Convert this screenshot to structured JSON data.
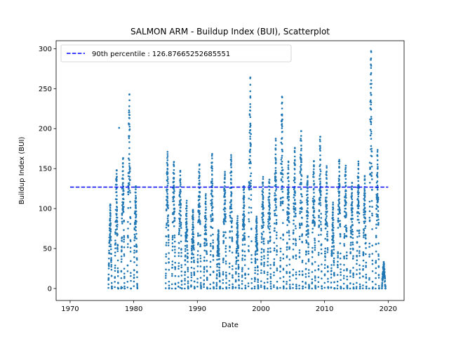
{
  "chart_data": {
    "type": "scatter",
    "title": "SALMON ARM - Buildup Index (BUI), Scatterplot",
    "xlabel": "Date",
    "ylabel": "Buildup Index (BUI)",
    "xlim": [
      1967.8,
      2022.5
    ],
    "ylim": [
      -15,
      310
    ],
    "xticks": [
      1970,
      1980,
      1990,
      2000,
      2010,
      2020
    ],
    "yticks": [
      0,
      50,
      100,
      150,
      200,
      250,
      300
    ],
    "grid": false,
    "legend_position": "top-left",
    "colors": {
      "points": "#1f77b4",
      "percentile_line": "#0000ff"
    },
    "percentile_line": {
      "label": "90th percentile : 126.87665252685551",
      "value": 126.87665252685551,
      "x_start": 1970,
      "x_end": 2020
    },
    "series": [
      {
        "seasons": [
          [
            1976.3,
            104
          ],
          [
            1977.3,
            148
          ],
          [
            1978.3,
            162
          ],
          [
            1979.3,
            243
          ],
          [
            1980.3,
            128
          ],
          [
            1985.3,
            171
          ],
          [
            1986.3,
            158
          ],
          [
            1987.3,
            146
          ],
          [
            1988.3,
            107
          ],
          [
            1989.3,
            98
          ],
          [
            1990.3,
            154
          ],
          [
            1991.3,
            116
          ],
          [
            1992.3,
            168
          ],
          [
            1993.3,
            73
          ],
          [
            1994.3,
            146
          ],
          [
            1995.3,
            167
          ],
          [
            1996.3,
            88
          ],
          [
            1997.3,
            128
          ],
          [
            1998.3,
            263
          ],
          [
            1999.3,
            90
          ],
          [
            2000.3,
            137
          ],
          [
            2001.3,
            136
          ],
          [
            2002.3,
            185
          ],
          [
            2003.3,
            240
          ],
          [
            2004.3,
            159
          ],
          [
            2005.3,
            176
          ],
          [
            2006.3,
            197
          ],
          [
            2007.3,
            139
          ],
          [
            2008.3,
            159
          ],
          [
            2009.3,
            190
          ],
          [
            2010.3,
            151
          ],
          [
            2011.3,
            105
          ],
          [
            2012.3,
            161
          ],
          [
            2013.3,
            151
          ],
          [
            2014.3,
            132
          ],
          [
            2015.3,
            159
          ],
          [
            2016.3,
            140
          ],
          [
            2017.3,
            297
          ],
          [
            2018.3,
            171
          ],
          [
            2019.3,
            32
          ]
        ],
        "outliers": [
          [
            1977.7,
            201
          ],
          [
            1977.5,
            1
          ],
          [
            1978.2,
            1
          ],
          [
            1987.3,
            1
          ]
        ]
      }
    ]
  }
}
